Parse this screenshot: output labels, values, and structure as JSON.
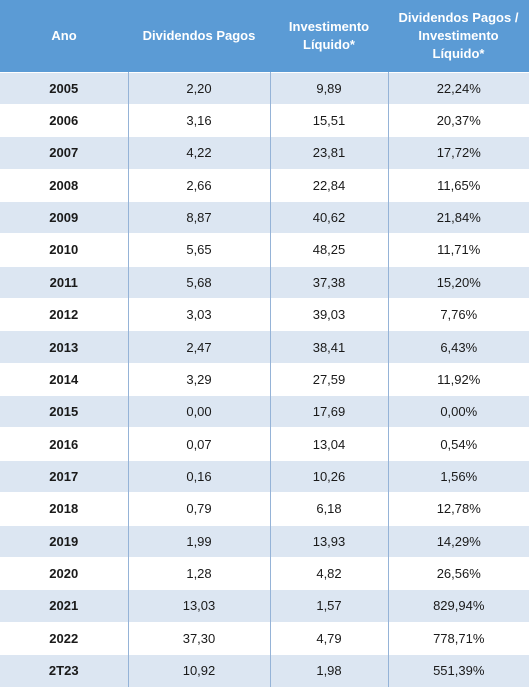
{
  "table": {
    "headers": [
      [
        "Ano"
      ],
      [
        "Dividendos Pagos"
      ],
      [
        "Investimento",
        "Líquido*"
      ],
      [
        "Dividendos Pagos /",
        "Investimento",
        "Líquido*"
      ]
    ],
    "rows": [
      [
        "2005",
        "2,20",
        "9,89",
        "22,24%"
      ],
      [
        "2006",
        "3,16",
        "15,51",
        "20,37%"
      ],
      [
        "2007",
        "4,22",
        "23,81",
        "17,72%"
      ],
      [
        "2008",
        "2,66",
        "22,84",
        "11,65%"
      ],
      [
        "2009",
        "8,87",
        "40,62",
        "21,84%"
      ],
      [
        "2010",
        "5,65",
        "48,25",
        "11,71%"
      ],
      [
        "2011",
        "5,68",
        "37,38",
        "15,20%"
      ],
      [
        "2012",
        "3,03",
        "39,03",
        "7,76%"
      ],
      [
        "2013",
        "2,47",
        "38,41",
        "6,43%"
      ],
      [
        "2014",
        "3,29",
        "27,59",
        "11,92%"
      ],
      [
        "2015",
        "0,00",
        "17,69",
        "0,00%"
      ],
      [
        "2016",
        "0,07",
        "13,04",
        "0,54%"
      ],
      [
        "2017",
        "0,16",
        "10,26",
        "1,56%"
      ],
      [
        "2018",
        "0,79",
        "6,18",
        "12,78%"
      ],
      [
        "2019",
        "1,99",
        "13,93",
        "14,29%"
      ],
      [
        "2020",
        "1,28",
        "4,82",
        "26,56%"
      ],
      [
        "2021",
        "13,03",
        "1,57",
        "829,94%"
      ],
      [
        "2022",
        "37,30",
        "4,79",
        "778,71%"
      ],
      [
        "2T23",
        "10,92",
        "1,98",
        "551,39%"
      ]
    ]
  },
  "colors": {
    "header_bg": "#5b9bd5",
    "header_text": "#ffffff",
    "band_row": "#dce6f2",
    "plain_row": "#ffffff",
    "divider": "#95b3d7"
  }
}
